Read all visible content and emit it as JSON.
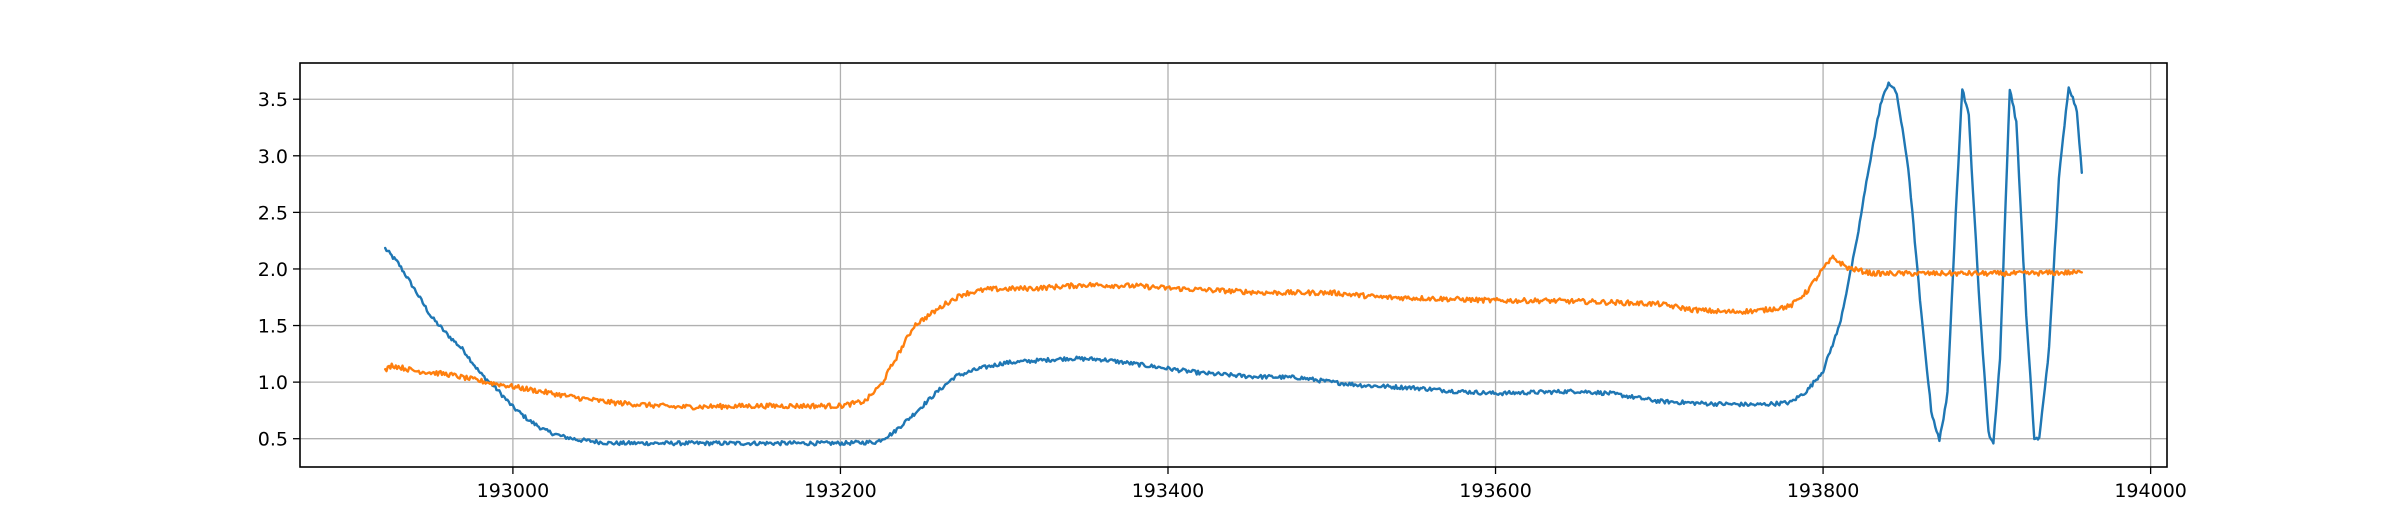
{
  "chart_data": {
    "type": "line",
    "title": "",
    "xlabel": "",
    "ylabel": "",
    "xlim": [
      192870,
      194010
    ],
    "ylim": [
      0.25,
      3.82
    ],
    "grid": true,
    "legend": "none",
    "x_ticks": [
      193000,
      193200,
      193400,
      193600,
      193800,
      194000
    ],
    "x_tick_labels": [
      "193000",
      "193200",
      "193400",
      "193600",
      "193800",
      "194000"
    ],
    "y_ticks": [
      0.5,
      1.0,
      1.5,
      2.0,
      2.5,
      3.0,
      3.5
    ],
    "y_tick_labels": [
      "0.5",
      "1.0",
      "1.5",
      "2.0",
      "2.5",
      "3.0",
      "3.5"
    ],
    "series": [
      {
        "color": "#1f77b4",
        "noise": 0.018,
        "points": [
          [
            192922,
            2.18
          ],
          [
            192930,
            2.05
          ],
          [
            192940,
            1.82
          ],
          [
            192950,
            1.58
          ],
          [
            192960,
            1.42
          ],
          [
            192970,
            1.28
          ],
          [
            192980,
            1.08
          ],
          [
            192990,
            0.94
          ],
          [
            193000,
            0.78
          ],
          [
            193010,
            0.66
          ],
          [
            193020,
            0.57
          ],
          [
            193030,
            0.52
          ],
          [
            193040,
            0.49
          ],
          [
            193060,
            0.46
          ],
          [
            193100,
            0.46
          ],
          [
            193150,
            0.46
          ],
          [
            193200,
            0.46
          ],
          [
            193222,
            0.47
          ],
          [
            193232,
            0.55
          ],
          [
            193245,
            0.72
          ],
          [
            193258,
            0.9
          ],
          [
            193270,
            1.05
          ],
          [
            193285,
            1.12
          ],
          [
            193300,
            1.17
          ],
          [
            193320,
            1.19
          ],
          [
            193340,
            1.21
          ],
          [
            193360,
            1.2
          ],
          [
            193380,
            1.16
          ],
          [
            193400,
            1.12
          ],
          [
            193420,
            1.08
          ],
          [
            193450,
            1.05
          ],
          [
            193480,
            1.04
          ],
          [
            193500,
            1.0
          ],
          [
            193520,
            0.97
          ],
          [
            193550,
            0.95
          ],
          [
            193575,
            0.92
          ],
          [
            193600,
            0.9
          ],
          [
            193625,
            0.91
          ],
          [
            193650,
            0.92
          ],
          [
            193670,
            0.9
          ],
          [
            193700,
            0.83
          ],
          [
            193730,
            0.81
          ],
          [
            193760,
            0.8
          ],
          [
            193780,
            0.82
          ],
          [
            193790,
            0.92
          ],
          [
            193800,
            1.1
          ],
          [
            193810,
            1.5
          ],
          [
            193820,
            2.2
          ],
          [
            193828,
            2.9
          ],
          [
            193835,
            3.45
          ],
          [
            193840,
            3.65
          ],
          [
            193845,
            3.55
          ],
          [
            193852,
            2.9
          ],
          [
            193860,
            1.6
          ],
          [
            193866,
            0.75
          ],
          [
            193871,
            0.48
          ],
          [
            193876,
            0.9
          ],
          [
            193881,
            2.5
          ],
          [
            193885,
            3.6
          ],
          [
            193889,
            3.35
          ],
          [
            193895,
            1.8
          ],
          [
            193901,
            0.55
          ],
          [
            193904,
            0.46
          ],
          [
            193908,
            1.2
          ],
          [
            193914,
            3.6
          ],
          [
            193918,
            3.3
          ],
          [
            193924,
            1.6
          ],
          [
            193929,
            0.5
          ],
          [
            193932,
            0.5
          ],
          [
            193938,
            1.3
          ],
          [
            193944,
            2.8
          ],
          [
            193950,
            3.62
          ],
          [
            193955,
            3.4
          ],
          [
            193958,
            2.85
          ]
        ]
      },
      {
        "color": "#ff7f0e",
        "noise": 0.022,
        "points": [
          [
            192922,
            1.1
          ],
          [
            192926,
            1.15
          ],
          [
            192940,
            1.1
          ],
          [
            192960,
            1.07
          ],
          [
            192980,
            1.01
          ],
          [
            193000,
            0.96
          ],
          [
            193020,
            0.91
          ],
          [
            193040,
            0.86
          ],
          [
            193060,
            0.82
          ],
          [
            193080,
            0.8
          ],
          [
            193100,
            0.78
          ],
          [
            193150,
            0.79
          ],
          [
            193200,
            0.79
          ],
          [
            193215,
            0.83
          ],
          [
            193225,
            0.98
          ],
          [
            193235,
            1.24
          ],
          [
            193245,
            1.5
          ],
          [
            193255,
            1.6
          ],
          [
            193265,
            1.7
          ],
          [
            193275,
            1.78
          ],
          [
            193290,
            1.82
          ],
          [
            193320,
            1.83
          ],
          [
            193350,
            1.86
          ],
          [
            193380,
            1.85
          ],
          [
            193400,
            1.83
          ],
          [
            193430,
            1.81
          ],
          [
            193460,
            1.79
          ],
          [
            193500,
            1.79
          ],
          [
            193530,
            1.75
          ],
          [
            193560,
            1.74
          ],
          [
            193600,
            1.72
          ],
          [
            193630,
            1.72
          ],
          [
            193660,
            1.71
          ],
          [
            193700,
            1.69
          ],
          [
            193720,
            1.64
          ],
          [
            193740,
            1.62
          ],
          [
            193760,
            1.63
          ],
          [
            193780,
            1.67
          ],
          [
            193790,
            1.8
          ],
          [
            193800,
            2.0
          ],
          [
            193806,
            2.1
          ],
          [
            193815,
            2.01
          ],
          [
            193830,
            1.96
          ],
          [
            193870,
            1.96
          ],
          [
            193920,
            1.96
          ],
          [
            193958,
            1.97
          ]
        ]
      }
    ]
  }
}
